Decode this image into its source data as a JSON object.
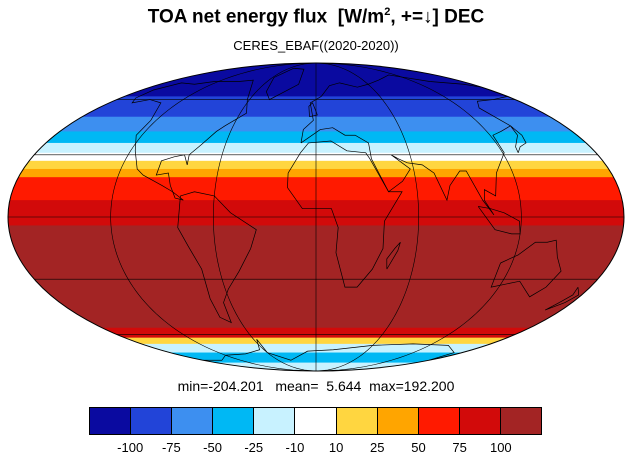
{
  "title": {
    "text_before": "TOA net energy flux  [W/m",
    "superscript": "2",
    "text_after": ", +=↓] DEC"
  },
  "subtitle": "CERES_EBAF((2020-2020))",
  "stats": {
    "min_label": "min=",
    "min": "-204.201",
    "mean_label": "mean=",
    "mean": "5.644",
    "max_label": "max=",
    "max": "192.200"
  },
  "map_data": {
    "projection": "mollweide",
    "graticule_step_lon": 60,
    "graticule_step_lat": 30,
    "lat_bands": [
      {
        "lat_from": 90,
        "lat_to": 62,
        "color": "#0a0aa0"
      },
      {
        "lat_from": 62,
        "lat_to": 50,
        "color": "#2244d8"
      },
      {
        "lat_from": 50,
        "lat_to": 42,
        "color": "#3d8ff0"
      },
      {
        "lat_from": 42,
        "lat_to": 36,
        "color": "#00b8f4"
      },
      {
        "lat_from": 36,
        "lat_to": 31,
        "color": "#c8f2ff"
      },
      {
        "lat_from": 31,
        "lat_to": 27,
        "color": "#ffffff"
      },
      {
        "lat_from": 27,
        "lat_to": 23,
        "color": "#ffd640"
      },
      {
        "lat_from": 23,
        "lat_to": 19,
        "color": "#ffa500"
      },
      {
        "lat_from": 19,
        "lat_to": 8,
        "color": "#ff1a00"
      },
      {
        "lat_from": 8,
        "lat_to": -4,
        "color": "#d20a0a"
      },
      {
        "lat_from": -4,
        "lat_to": -56,
        "color": "#a32424"
      },
      {
        "lat_from": -56,
        "lat_to": -62,
        "color": "#d20a0a"
      },
      {
        "lat_from": -62,
        "lat_to": -66,
        "color": "#ffd640"
      },
      {
        "lat_from": -66,
        "lat_to": -72,
        "color": "#c8f2ff"
      },
      {
        "lat_from": -72,
        "lat_to": -80,
        "color": "#00b8f4"
      },
      {
        "lat_from": -80,
        "lat_to": -90,
        "color": "#c8f2ff"
      }
    ]
  },
  "colorbar": {
    "colors": [
      "#0a0aa0",
      "#2244d8",
      "#3d8ff0",
      "#00b8f4",
      "#c8f2ff",
      "#ffffff",
      "#ffd640",
      "#ffa500",
      "#ff1a00",
      "#d20a0a",
      "#a32424"
    ],
    "tick_labels": [
      "-100",
      "-75",
      "-50",
      "-25",
      "-10",
      "10",
      "25",
      "50",
      "75",
      "100"
    ]
  }
}
